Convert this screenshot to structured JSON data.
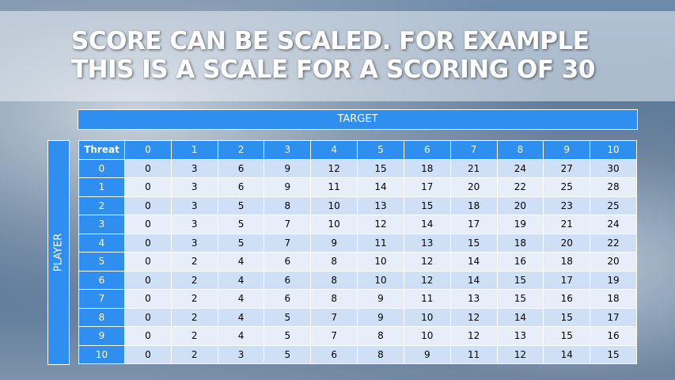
{
  "title": {
    "lines": [
      "SCORE CAN BE SCALED. FOR EXAMPLE",
      "THIS IS A SCALE FOR A SCORING OF 30"
    ]
  },
  "target_label": "TARGET",
  "player_label": "PLAYER",
  "table": {
    "header": [
      "Threat",
      0,
      1,
      2,
      3,
      4,
      5,
      6,
      7,
      8,
      9,
      10
    ],
    "rows": [
      [
        0,
        0,
        3,
        6,
        9,
        12,
        15,
        18,
        21,
        24,
        27,
        30
      ],
      [
        1,
        0,
        3,
        6,
        9,
        11,
        14,
        17,
        20,
        22,
        25,
        28
      ],
      [
        2,
        0,
        3,
        5,
        8,
        10,
        13,
        15,
        18,
        20,
        23,
        25
      ],
      [
        3,
        0,
        3,
        5,
        7,
        10,
        12,
        14,
        17,
        19,
        21,
        24
      ],
      [
        4,
        0,
        3,
        5,
        7,
        9,
        11,
        13,
        15,
        18,
        20,
        22
      ],
      [
        5,
        0,
        2,
        4,
        6,
        8,
        10,
        12,
        14,
        16,
        18,
        20
      ],
      [
        6,
        0,
        2,
        4,
        6,
        8,
        10,
        12,
        14,
        15,
        17,
        19
      ],
      [
        7,
        0,
        2,
        4,
        6,
        8,
        9,
        11,
        13,
        15,
        16,
        18
      ],
      [
        8,
        0,
        2,
        4,
        5,
        7,
        9,
        10,
        12,
        14,
        15,
        17
      ],
      [
        9,
        0,
        2,
        4,
        5,
        7,
        8,
        10,
        12,
        13,
        15,
        16
      ],
      [
        10,
        0,
        2,
        3,
        5,
        6,
        8,
        9,
        11,
        12,
        14,
        15
      ]
    ]
  }
}
